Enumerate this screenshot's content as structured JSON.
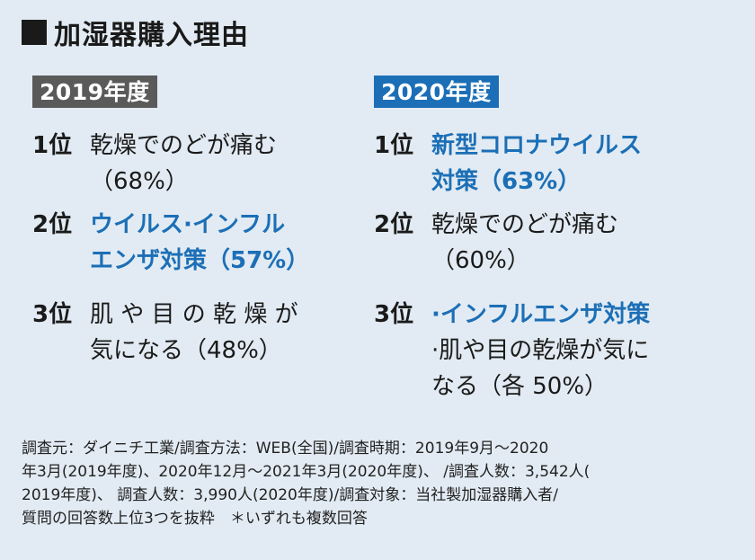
{
  "title": "加湿器購入理由",
  "left": {
    "year": "2019年度",
    "items": [
      {
        "rank": "1位",
        "line1": "乾燥でのどが痛む",
        "line2": "（68%）"
      },
      {
        "rank": "2位",
        "line1": "ウイルス·インフル",
        "line2": "エンザ対策（57%）"
      },
      {
        "rank": "3位",
        "line1": "肌 や 目 の 乾 燥 が",
        "line2": "気になる（48%）"
      }
    ]
  },
  "right": {
    "year": "2020年度",
    "items": [
      {
        "rank": "1位",
        "line1": "新型コロナウイルス",
        "line2": "対策（63%）"
      },
      {
        "rank": "2位",
        "line1": "乾燥でのどが痛む",
        "line2": "（60%）"
      },
      {
        "rank": "3位",
        "line1": "·インフルエンザ対策",
        "line2": "·肌や目の乾燥が気に",
        "line3": "なる（各 50%）"
      }
    ]
  },
  "footer": {
    "l1": "調査元：ダイニチ工業/調査方法：WEB(全国)/調査時期：2019年9月～2020",
    "l2": "年3月(2019年度)、2020年12月～2021年3月(2020年度)、 /調査人数：3,542人(",
    "l3": "2019年度)、 調査人数：3,990人(2020年度)/調査対象：当社製加湿器購入者/",
    "l4": "質問の回答数上位3つを抜粋　＊いずれも複数回答"
  },
  "colors": {
    "accent": "#1c6fb6",
    "background": "#e2ebf3",
    "badge_gray": "#5a5a5a"
  }
}
